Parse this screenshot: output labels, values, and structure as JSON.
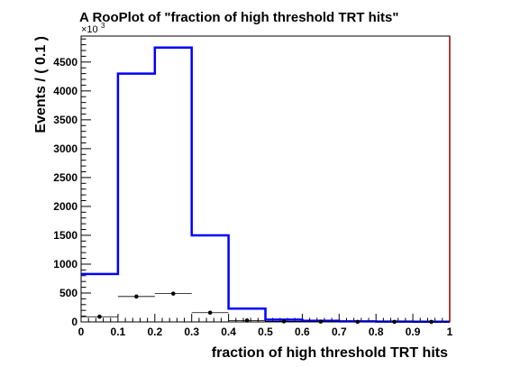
{
  "chart_data": {
    "type": "bar",
    "title": "A RooPlot of \"fraction of high threshold TRT hits\"",
    "xlabel": "fraction of high threshold TRT hits",
    "ylabel": "Events / ( 0.1 )",
    "y_exponent_label": "×10",
    "y_exponent_power": "3",
    "xlim": [
      0,
      1
    ],
    "ylim": [
      0,
      4950
    ],
    "x_ticks": [
      "0",
      "0.1",
      "0.2",
      "0.3",
      "0.4",
      "0.5",
      "0.6",
      "0.7",
      "0.8",
      "0.9",
      "1"
    ],
    "y_ticks": [
      "0",
      "500",
      "1000",
      "1500",
      "2000",
      "2500",
      "3000",
      "3500",
      "4000",
      "4500"
    ],
    "bin_edges": [
      0,
      0.1,
      0.2,
      0.3,
      0.4,
      0.5,
      0.6,
      0.7,
      0.8,
      0.9,
      1.0
    ],
    "series": [
      {
        "style": "step",
        "color": "#0000ff",
        "values": [
          830,
          4300,
          4750,
          1500,
          230,
          40,
          20,
          10,
          5,
          3
        ]
      },
      {
        "style": "points",
        "color": "#000000",
        "x": [
          0.05,
          0.15,
          0.25,
          0.35,
          0.45,
          0.55,
          0.65,
          0.75,
          0.85,
          0.95
        ],
        "values": [
          90,
          440,
          490,
          160,
          25,
          10,
          5,
          2,
          1,
          1
        ]
      }
    ],
    "right_edge_line_color": "#8b0000",
    "grid": false,
    "legend": "none"
  }
}
